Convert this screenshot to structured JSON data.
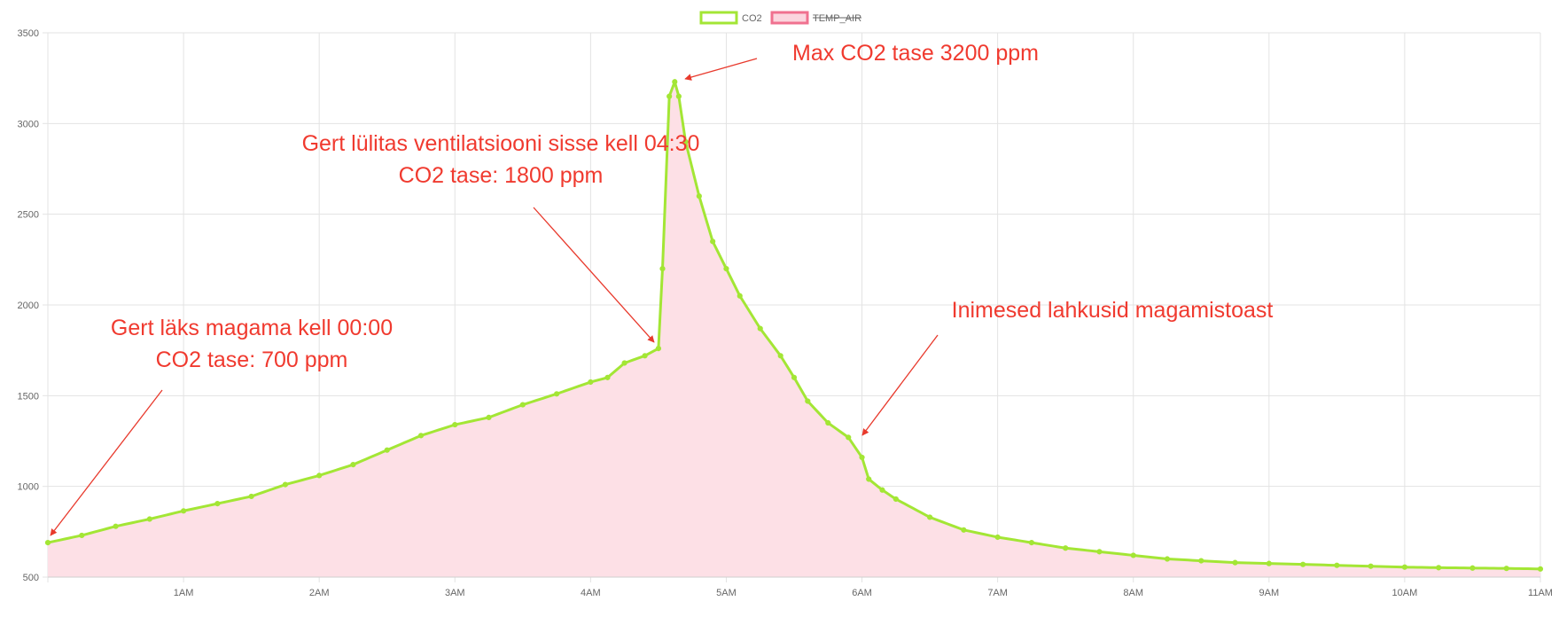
{
  "chart_data": {
    "type": "line",
    "xlabel": "",
    "ylabel": "",
    "xlim": [
      0,
      11
    ],
    "ylim": [
      500,
      3500
    ],
    "x_ticks": [
      {
        "x": 1,
        "label": "1AM"
      },
      {
        "x": 2,
        "label": "2AM"
      },
      {
        "x": 3,
        "label": "3AM"
      },
      {
        "x": 4,
        "label": "4AM"
      },
      {
        "x": 5,
        "label": "5AM"
      },
      {
        "x": 6,
        "label": "6AM"
      },
      {
        "x": 7,
        "label": "7AM"
      },
      {
        "x": 8,
        "label": "8AM"
      },
      {
        "x": 9,
        "label": "9AM"
      },
      {
        "x": 10,
        "label": "10AM"
      },
      {
        "x": 11,
        "label": "11AM"
      }
    ],
    "y_ticks": [
      {
        "y": 500,
        "label": "500"
      },
      {
        "y": 1000,
        "label": "1000"
      },
      {
        "y": 1500,
        "label": "1500"
      },
      {
        "y": 2000,
        "label": "2000"
      },
      {
        "y": 2500,
        "label": "2500"
      },
      {
        "y": 3000,
        "label": "3000"
      },
      {
        "y": 3500,
        "label": "3500"
      }
    ],
    "grid": true,
    "legend_position": "top-center",
    "legend": [
      {
        "label": "CO2",
        "color": "#a3e635",
        "fill": "#ffffff",
        "hidden": false
      },
      {
        "label": "TEMP_AIR",
        "color": "#f0718f",
        "fill": "#fbd5de",
        "hidden": true
      }
    ],
    "series": [
      {
        "name": "CO2",
        "line_color": "#a3e635",
        "fill_color": "#fde0e6",
        "x": [
          0,
          0.25,
          0.5,
          0.75,
          1.0,
          1.25,
          1.5,
          1.75,
          2.0,
          2.25,
          2.5,
          2.75,
          3.0,
          3.25,
          3.5,
          3.75,
          4.0,
          4.125,
          4.25,
          4.4,
          4.5,
          4.53,
          4.58,
          4.62,
          4.65,
          4.7,
          4.8,
          4.9,
          5.0,
          5.1,
          5.25,
          5.4,
          5.5,
          5.6,
          5.75,
          5.9,
          6.0,
          6.05,
          6.15,
          6.25,
          6.5,
          6.75,
          7.0,
          7.25,
          7.5,
          7.75,
          8.0,
          8.25,
          8.5,
          8.75,
          9.0,
          9.25,
          9.5,
          9.75,
          10.0,
          10.25,
          10.5,
          10.75,
          11.0
        ],
        "values": [
          690,
          730,
          780,
          820,
          865,
          905,
          945,
          1010,
          1060,
          1120,
          1200,
          1280,
          1340,
          1380,
          1450,
          1510,
          1575,
          1600,
          1680,
          1720,
          1760,
          2200,
          3150,
          3230,
          3150,
          2900,
          2600,
          2350,
          2200,
          2050,
          1870,
          1720,
          1600,
          1470,
          1350,
          1270,
          1160,
          1040,
          980,
          930,
          830,
          760,
          720,
          690,
          660,
          640,
          620,
          600,
          590,
          580,
          575,
          570,
          565,
          560,
          555,
          552,
          550,
          548,
          545
        ]
      }
    ],
    "annotations": [
      {
        "lines": [
          "Max CO2 tase 3200 ppm"
        ],
        "target_x": 4.62,
        "target_y": 3230
      },
      {
        "lines": [
          "Gert lülitas ventilatsiooni sisse kell 04:30",
          "CO2 tase: 1800 ppm"
        ],
        "target_x": 4.5,
        "target_y": 1760
      },
      {
        "lines": [
          "Inimesed lahkusid magamistoast"
        ],
        "target_x": 6.0,
        "target_y": 1270
      },
      {
        "lines": [
          "Gert läks magama kell 00:00",
          "CO2 tase: 700 ppm"
        ],
        "target_x": 0.02,
        "target_y": 700
      }
    ]
  }
}
